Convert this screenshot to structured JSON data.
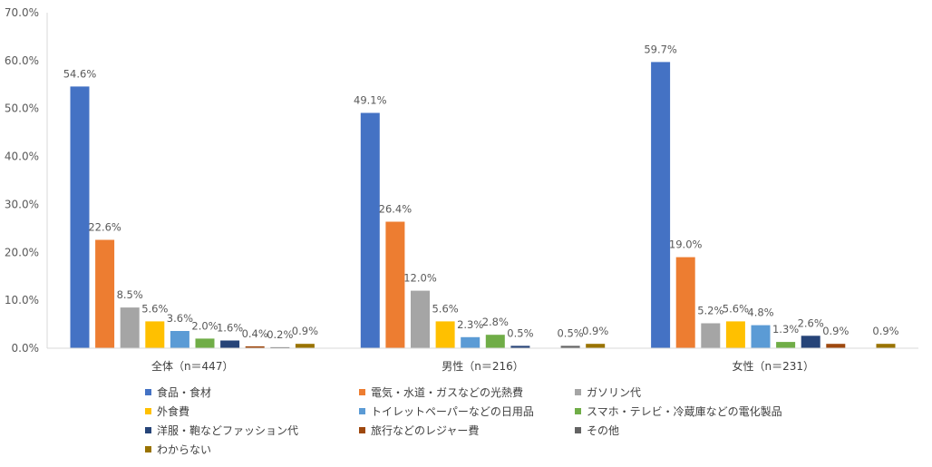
{
  "chart_data": {
    "type": "bar",
    "categories": [
      "全体（n＝447）",
      "男性（n＝216）",
      "女性（n＝231）"
    ],
    "ylim": [
      0,
      70
    ],
    "yticks": [
      "0.0%",
      "10.0%",
      "20.0%",
      "30.0%",
      "40.0%",
      "50.0%",
      "60.0%",
      "70.0%"
    ],
    "series": [
      {
        "name": "食品・食材",
        "color": "#4472C4",
        "values": [
          54.6,
          49.1,
          59.7
        ],
        "labels": [
          "54.6%",
          "49.1%",
          "59.7%"
        ]
      },
      {
        "name": "電気・水道・ガスなどの光熱費",
        "color": "#ED7D31",
        "values": [
          22.6,
          26.4,
          19.0
        ],
        "labels": [
          "22.6%",
          "26.4%",
          "19.0%"
        ]
      },
      {
        "name": "ガソリン代",
        "color": "#A5A5A5",
        "values": [
          8.5,
          12.0,
          5.2
        ],
        "labels": [
          "8.5%",
          "12.0%",
          "5.2%"
        ]
      },
      {
        "name": "外食費",
        "color": "#FFC000",
        "values": [
          5.6,
          5.6,
          5.6
        ],
        "labels": [
          "5.6%",
          "5.6%",
          "5.6%"
        ]
      },
      {
        "name": "トイレットペーパーなどの日用品",
        "color": "#5B9BD5",
        "values": [
          3.6,
          2.3,
          4.8
        ],
        "labels": [
          "3.6%",
          "2.3%",
          "4.8%"
        ]
      },
      {
        "name": "スマホ・テレビ・冷蔵庫などの電化製品",
        "color": "#70AD47",
        "values": [
          2.0,
          2.8,
          1.3
        ],
        "labels": [
          "2.0%",
          "2.8%",
          "1.3%"
        ]
      },
      {
        "name": "洋服・鞄などファッション代",
        "color": "#264478",
        "values": [
          1.6,
          0.5,
          2.6
        ],
        "labels": [
          "1.6%",
          "0.5%",
          "2.6%"
        ]
      },
      {
        "name": "旅行などのレジャー費",
        "color": "#9E480E",
        "values": [
          0.4,
          0.0,
          0.9
        ],
        "labels": [
          "0.4%",
          "",
          "0.9%"
        ]
      },
      {
        "name": "その他",
        "color": "#636363",
        "values": [
          0.2,
          0.5,
          0.0
        ],
        "labels": [
          "0.2%",
          "0.5%",
          ""
        ]
      },
      {
        "name": "わからない",
        "color": "#997300",
        "values": [
          0.9,
          0.9,
          0.9
        ],
        "labels": [
          "0.9%",
          "0.9%",
          "0.9%"
        ]
      }
    ]
  }
}
